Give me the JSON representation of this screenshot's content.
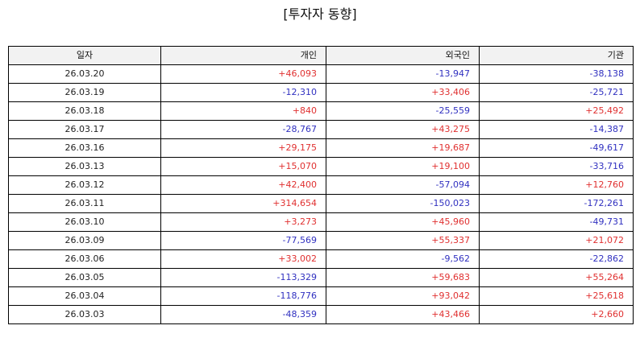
{
  "title": "[투자자 동향]",
  "colors": {
    "positive": "#e03030",
    "negative": "#3030c0",
    "header_bg": "#f2f2f2",
    "border": "#000000"
  },
  "table": {
    "headers": [
      "일자",
      "개인",
      "외국인",
      "기관"
    ],
    "rows": [
      [
        "26.03.20",
        "+46,093",
        "-13,947",
        "-38,138"
      ],
      [
        "26.03.19",
        "-12,310",
        "+33,406",
        "-25,721"
      ],
      [
        "26.03.18",
        "+840",
        "-25,559",
        "+25,492"
      ],
      [
        "26.03.17",
        "-28,767",
        "+43,275",
        "-14,387"
      ],
      [
        "26.03.16",
        "+29,175",
        "+19,687",
        "-49,617"
      ],
      [
        "26.03.13",
        "+15,070",
        "+19,100",
        "-33,716"
      ],
      [
        "26.03.12",
        "+42,400",
        "-57,094",
        "+12,760"
      ],
      [
        "26.03.11",
        "+314,654",
        "-150,023",
        "-172,261"
      ],
      [
        "26.03.10",
        "+3,273",
        "+45,960",
        "-49,731"
      ],
      [
        "26.03.09",
        "-77,569",
        "+55,337",
        "+21,072"
      ],
      [
        "26.03.06",
        "+33,002",
        "-9,562",
        "-22,862"
      ],
      [
        "26.03.05",
        "-113,329",
        "+59,683",
        "+55,264"
      ],
      [
        "26.03.04",
        "-118,776",
        "+93,042",
        "+25,618"
      ],
      [
        "26.03.03",
        "-48,359",
        "+43,466",
        "+2,660"
      ]
    ]
  }
}
